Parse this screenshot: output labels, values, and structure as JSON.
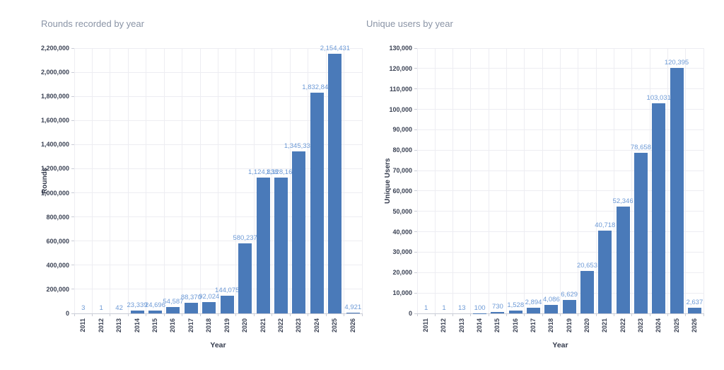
{
  "colors": {
    "bar": "#4a7ab9",
    "bar_label": "#6d9ad6",
    "title": "#8a94a6",
    "axis_text": "#3b4254",
    "grid": "#ededf2",
    "axis_line": "#c9ccd6",
    "background": "#ffffff"
  },
  "chart_data": [
    {
      "type": "bar",
      "title": "Rounds recorded by year",
      "xlabel": "Year",
      "ylabel": "Rounds",
      "categories": [
        "2011",
        "2012",
        "2013",
        "2014",
        "2015",
        "2016",
        "2017",
        "2018",
        "2019",
        "2020",
        "2021",
        "2022",
        "2023",
        "2024",
        "2025",
        "2026"
      ],
      "values": [
        3,
        1,
        42,
        23339,
        24696,
        54587,
        88370,
        92024,
        144075,
        580237,
        1124838,
        1128165,
        1345331,
        1832841,
        2154431,
        4921
      ],
      "ylim": [
        0,
        2200000
      ],
      "ytick_step": 200000,
      "grid": true,
      "legend": "none",
      "bar_value_labels": true
    },
    {
      "type": "bar",
      "title": "Unique users by year",
      "xlabel": "Year",
      "ylabel": "Unique Users",
      "categories": [
        "2011",
        "2012",
        "2013",
        "2014",
        "2015",
        "2016",
        "2017",
        "2018",
        "2019",
        "2020",
        "2021",
        "2022",
        "2023",
        "2024",
        "2025",
        "2026"
      ],
      "values": [
        1,
        1,
        13,
        100,
        730,
        1528,
        2894,
        4086,
        6629,
        20653,
        40718,
        52346,
        78658,
        103031,
        120395,
        2637
      ],
      "ylim": [
        0,
        130000
      ],
      "ytick_step": 10000,
      "grid": true,
      "legend": "none",
      "bar_value_labels": true
    }
  ]
}
